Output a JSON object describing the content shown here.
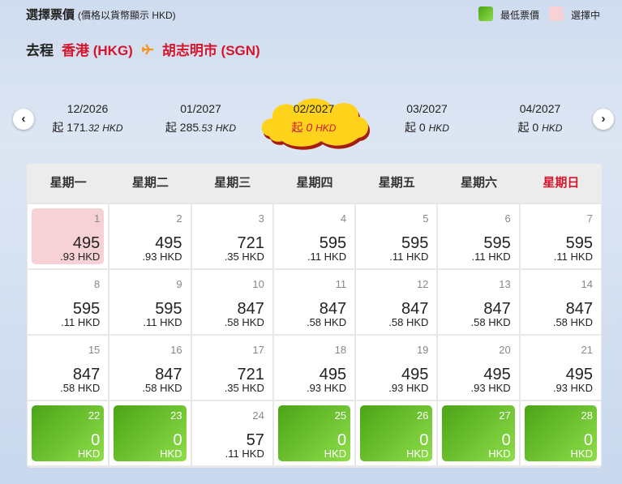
{
  "header": {
    "title": "選擇票價",
    "note": "(價格以貨幣顯示 HKD)",
    "legend": [
      {
        "label": "最低票價",
        "state": "lowest"
      },
      {
        "label": "選擇中",
        "state": "selected"
      }
    ]
  },
  "route": {
    "label": "去程",
    "from": "香港 (HKG)",
    "to": "胡志明市 (SGN)"
  },
  "currency": "HKD",
  "prefix": "起",
  "months": [
    {
      "month": "12/2026",
      "price": "171",
      "decimals": ".32"
    },
    {
      "month": "01/2027",
      "price": "285",
      "decimals": ".53"
    },
    {
      "month": "02/2027",
      "price": "0",
      "state": "selected"
    },
    {
      "month": "03/2027",
      "price": "0"
    },
    {
      "month": "04/2027",
      "price": "0"
    }
  ],
  "weekdays": [
    "星期一",
    "星期二",
    "星期三",
    "星期四",
    "星期五",
    "星期六",
    "星期日"
  ],
  "days": [
    {
      "day": "1",
      "price": "495",
      "decimals": ".93",
      "state": "selected"
    },
    {
      "day": "2",
      "price": "495",
      "decimals": ".93"
    },
    {
      "day": "3",
      "price": "721",
      "decimals": ".35"
    },
    {
      "day": "4",
      "price": "595",
      "decimals": ".11"
    },
    {
      "day": "5",
      "price": "595",
      "decimals": ".11"
    },
    {
      "day": "6",
      "price": "595",
      "decimals": ".11"
    },
    {
      "day": "7",
      "price": "595",
      "decimals": ".11"
    },
    {
      "day": "8",
      "price": "595",
      "decimals": ".11"
    },
    {
      "day": "9",
      "price": "595",
      "decimals": ".11"
    },
    {
      "day": "10",
      "price": "847",
      "decimals": ".58"
    },
    {
      "day": "11",
      "price": "847",
      "decimals": ".58"
    },
    {
      "day": "12",
      "price": "847",
      "decimals": ".58"
    },
    {
      "day": "13",
      "price": "847",
      "decimals": ".58"
    },
    {
      "day": "14",
      "price": "847",
      "decimals": ".58"
    },
    {
      "day": "15",
      "price": "847",
      "decimals": ".58"
    },
    {
      "day": "16",
      "price": "847",
      "decimals": ".58"
    },
    {
      "day": "17",
      "price": "721",
      "decimals": ".35"
    },
    {
      "day": "18",
      "price": "495",
      "decimals": ".93"
    },
    {
      "day": "19",
      "price": "495",
      "decimals": ".93"
    },
    {
      "day": "20",
      "price": "495",
      "decimals": ".93"
    },
    {
      "day": "21",
      "price": "495",
      "decimals": ".93"
    },
    {
      "day": "22",
      "price": "0",
      "state": "lowest"
    },
    {
      "day": "23",
      "price": "0",
      "state": "lowest"
    },
    {
      "day": "24",
      "price": "57",
      "decimals": ".11"
    },
    {
      "day": "25",
      "price": "0",
      "state": "lowest"
    },
    {
      "day": "26",
      "price": "0",
      "state": "lowest"
    },
    {
      "day": "27",
      "price": "0",
      "state": "lowest"
    },
    {
      "day": "28",
      "price": "0",
      "state": "lowest"
    }
  ]
}
